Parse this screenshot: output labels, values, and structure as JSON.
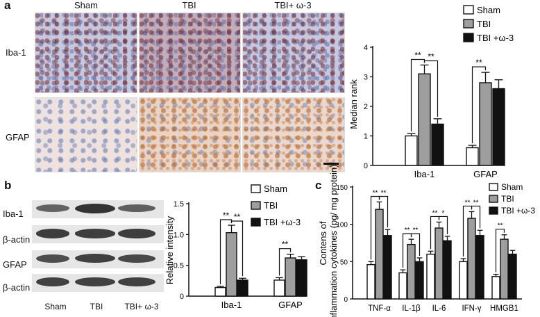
{
  "panel_a": {
    "label": "a",
    "headers": [
      "Sham",
      "TBI",
      "TBI+ ω-3"
    ],
    "rows": [
      "Iba-1",
      "GFAP"
    ]
  },
  "panel_b": {
    "label": "b",
    "lane_labels": [
      "Sham",
      "TBI",
      "TBI+ ω-3"
    ],
    "blot_rows": [
      "Iba-1",
      "β-actin",
      "GFAP",
      "β-actin"
    ],
    "band_intensity": [
      [
        0.45,
        1.0,
        0.5
      ],
      [
        0.9,
        0.9,
        0.9
      ],
      [
        0.7,
        0.85,
        0.75
      ],
      [
        0.85,
        0.85,
        0.85
      ]
    ]
  },
  "panel_c": {
    "label": "c"
  },
  "colors": {
    "sham": "#ffffff",
    "tbi": "#9e9e9e",
    "omega": "#111111"
  },
  "chart_data": [
    {
      "type": "bar",
      "id": "a",
      "categories": [
        "Iba-1",
        "GFAP"
      ],
      "series": [
        {
          "name": "Sham",
          "values": [
            1.0,
            0.6
          ],
          "errors": [
            0.08,
            0.08
          ]
        },
        {
          "name": "TBI",
          "values": [
            3.1,
            2.8
          ],
          "errors": [
            0.3,
            0.35
          ]
        },
        {
          "name": "TBI +ω-3",
          "values": [
            1.4,
            2.6
          ],
          "errors": [
            0.18,
            0.3
          ]
        }
      ],
      "ylabel": "Median rank",
      "ylim": [
        0,
        4
      ],
      "yticks": [
        "0",
        "1",
        "2",
        "3",
        "4"
      ],
      "significance": [
        {
          "group": 0,
          "from": 0,
          "to": 1,
          "label": "**"
        },
        {
          "group": 0,
          "from": 1,
          "to": 2,
          "label": "**"
        },
        {
          "group": 1,
          "from": 0,
          "to": 1,
          "label": "**"
        }
      ],
      "legend": [
        "Sham",
        "TBI",
        "TBI +ω-3"
      ]
    },
    {
      "type": "bar",
      "id": "b",
      "categories": [
        "Iba-1",
        "GFAP"
      ],
      "series": [
        {
          "name": "Sham",
          "values": [
            0.14,
            0.26
          ],
          "errors": [
            0.02,
            0.04
          ]
        },
        {
          "name": "TBI",
          "values": [
            1.03,
            0.62
          ],
          "errors": [
            0.12,
            0.06
          ]
        },
        {
          "name": "TBI +ω-3",
          "values": [
            0.26,
            0.59
          ],
          "errors": [
            0.03,
            0.05
          ]
        }
      ],
      "ylabel": "Relative intensity",
      "ylim": [
        0,
        1.5
      ],
      "yticks": [
        "0",
        "0.5",
        "1.0",
        "1.5"
      ],
      "significance": [
        {
          "group": 0,
          "from": 0,
          "to": 1,
          "label": "**"
        },
        {
          "group": 0,
          "from": 1,
          "to": 2,
          "label": "**"
        },
        {
          "group": 1,
          "from": 0,
          "to": 1,
          "label": "**"
        }
      ],
      "legend": [
        "Sham",
        "TBI",
        "TBI +ω-3"
      ]
    },
    {
      "type": "bar",
      "id": "c",
      "categories": [
        "TNF-α",
        "IL-1β",
        "IL-6",
        "IFN-γ",
        "HMGB1"
      ],
      "series": [
        {
          "name": "Sham",
          "values": [
            46,
            35,
            60,
            50,
            30
          ],
          "errors": [
            4,
            4,
            4,
            4,
            3
          ]
        },
        {
          "name": "TBI",
          "values": [
            120,
            73,
            95,
            108,
            80
          ],
          "errors": [
            10,
            7,
            8,
            9,
            6
          ]
        },
        {
          "name": "TBI +ω-3",
          "values": [
            85,
            50,
            78,
            85,
            60
          ],
          "errors": [
            8,
            5,
            6,
            7,
            5
          ]
        }
      ],
      "ylabel": "Contens of inflammation cytokines (pg/ mg protein)",
      "ylim": [
        0,
        150
      ],
      "yticks": [
        "0",
        "50",
        "100",
        "150"
      ],
      "significance": [
        {
          "group": 0,
          "from": 0,
          "to": 1,
          "label": "**"
        },
        {
          "group": 0,
          "from": 1,
          "to": 2,
          "label": "**"
        },
        {
          "group": 1,
          "from": 0,
          "to": 1,
          "label": "**"
        },
        {
          "group": 1,
          "from": 1,
          "to": 2,
          "label": "**"
        },
        {
          "group": 2,
          "from": 0,
          "to": 1,
          "label": "**"
        },
        {
          "group": 2,
          "from": 1,
          "to": 2,
          "label": "*"
        },
        {
          "group": 3,
          "from": 0,
          "to": 1,
          "label": "**"
        },
        {
          "group": 3,
          "from": 1,
          "to": 2,
          "label": "**"
        },
        {
          "group": 4,
          "from": 0,
          "to": 1,
          "label": "**"
        }
      ],
      "legend": [
        "Sham",
        "TBI",
        "TBI +ω-3"
      ]
    }
  ]
}
